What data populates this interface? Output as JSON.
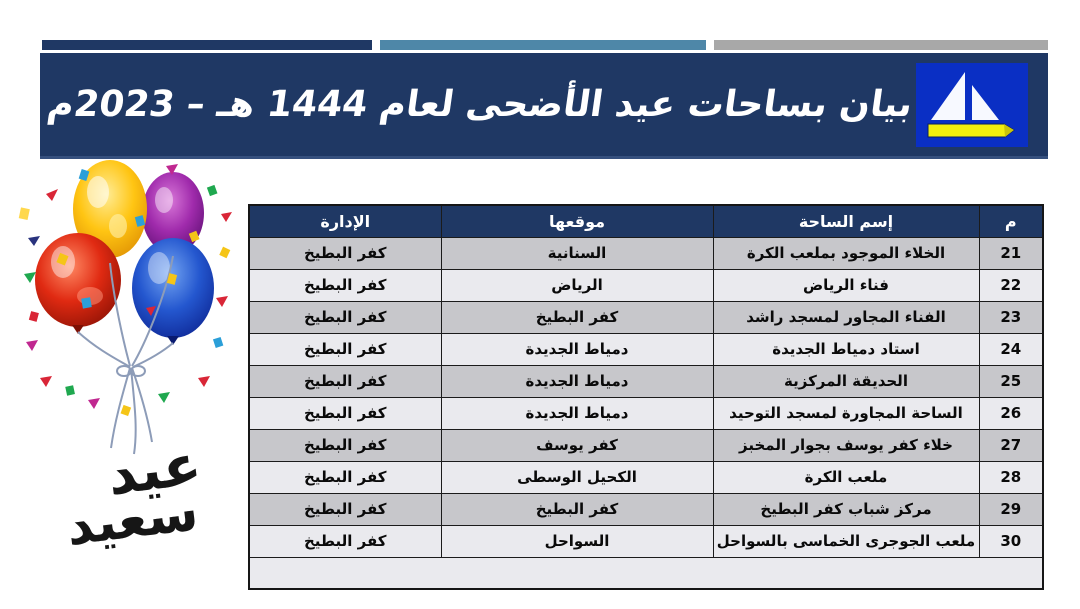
{
  "banner": {
    "title": "بيان بساحات عيد الأضحى لعام 1444 هـ – 2023م",
    "background": "#1f3864",
    "logo_icon": "sailboat-logo",
    "logo_background": "#0a2fc4",
    "logo_hull_color": "#f2ee0d"
  },
  "top_bars": {
    "navy": "#1f3864",
    "steel_blue": "#4e87a8",
    "gray": "#a8a8a8"
  },
  "decorations": {
    "balloons_icon": "balloons-bouquet",
    "calligraphy_top": "عيد",
    "calligraphy_bottom": "سعيد"
  },
  "table": {
    "header_bg": "#1f3864",
    "row_bg_odd": "#c7c7cb",
    "row_bg_even": "#eaeaee",
    "headers": {
      "num": "م",
      "name": "إسم الساحة",
      "location": "موقعها",
      "admin": "الإدارة"
    },
    "rows": [
      {
        "num": "21",
        "name": "الخلاء الموجود بملعب الكرة",
        "location": "السنانية",
        "admin": "كفر البطيخ"
      },
      {
        "num": "22",
        "name": "فناء الرياض",
        "location": "الرياض",
        "admin": "كفر البطيخ"
      },
      {
        "num": "23",
        "name": "الفناء المجاور لمسجد راشد",
        "location": "كفر البطيخ",
        "admin": "كفر البطيخ"
      },
      {
        "num": "24",
        "name": "استاد دمياط الجديدة",
        "location": "دمياط الجديدة",
        "admin": "كفر البطيخ"
      },
      {
        "num": "25",
        "name": "الحديقة المركزية",
        "location": "دمياط الجديدة",
        "admin": "كفر البطيخ"
      },
      {
        "num": "26",
        "name": "الساحة المجاورة لمسجد التوحيد",
        "location": "دمياط الجديدة",
        "admin": "كفر البطيخ"
      },
      {
        "num": "27",
        "name": "خلاء كفر يوسف بجوار المخبز",
        "location": "كفر يوسف",
        "admin": "كفر البطيخ"
      },
      {
        "num": "28",
        "name": "ملعب الكرة",
        "location": "الكحيل الوسطى",
        "admin": "كفر البطيخ"
      },
      {
        "num": "29",
        "name": "مركز شباب كفر البطيخ",
        "location": "كفر البطيخ",
        "admin": "كفر البطيخ"
      },
      {
        "num": "30",
        "name": "ملعب الجوجرى الخماسى بالسواحل",
        "location": "السواحل",
        "admin": "كفر البطيخ"
      }
    ]
  }
}
